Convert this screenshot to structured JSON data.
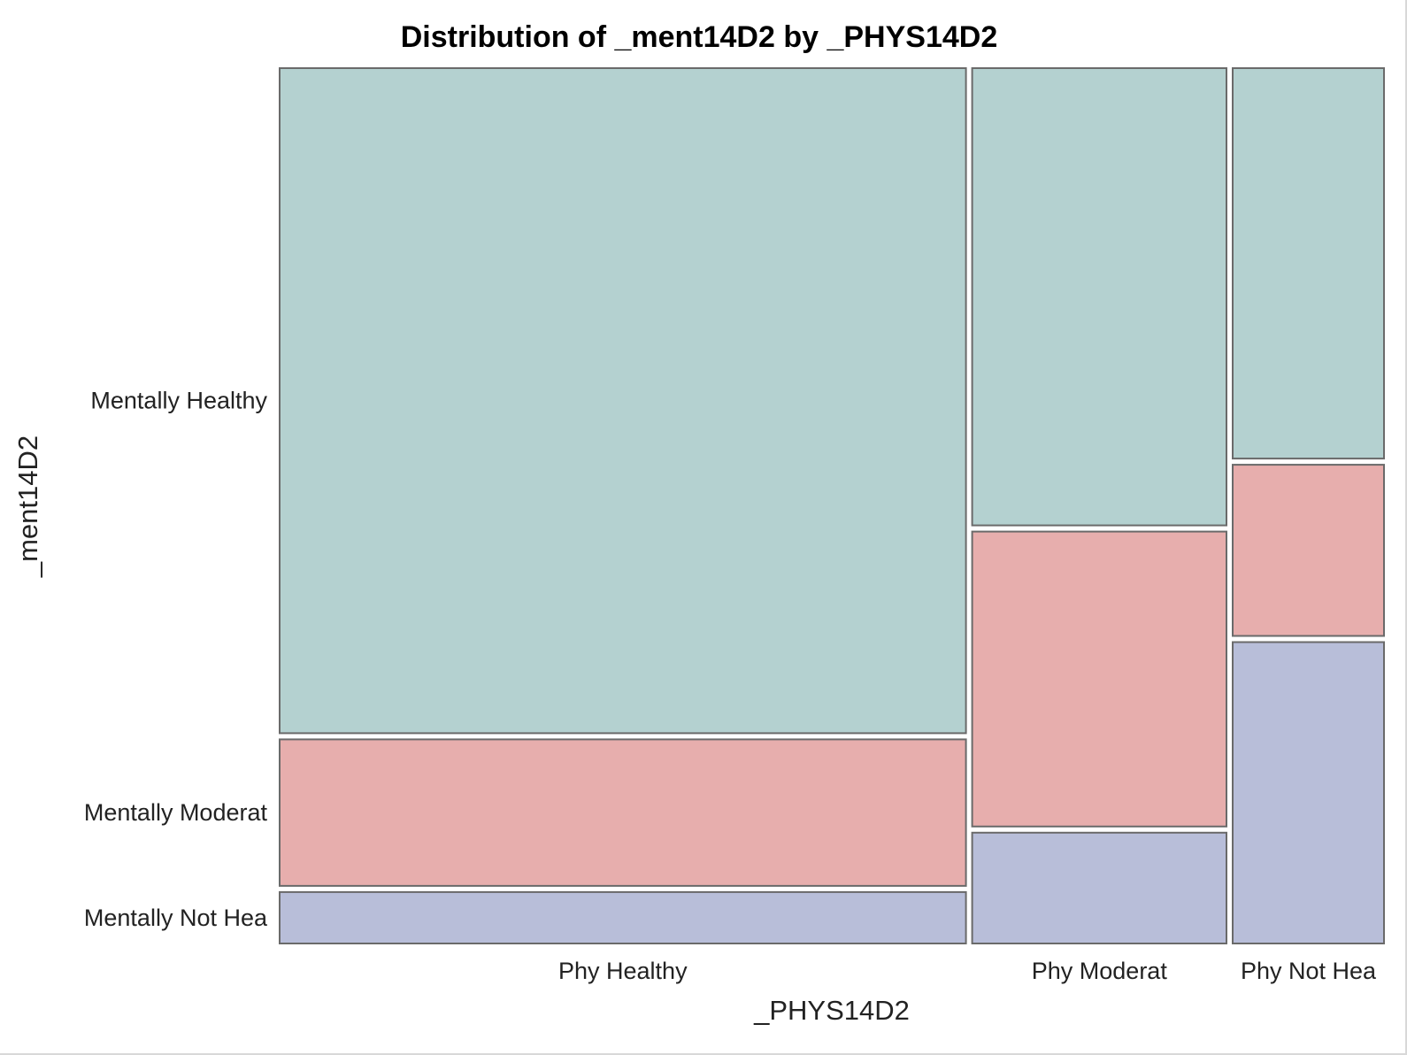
{
  "chart_data": {
    "type": "mosaic",
    "title": "Distribution of _ment14D2 by _PHYS14D2",
    "xlabel": "_PHYS14D2",
    "ylabel": "_ment14D2",
    "x_categories": [
      "Phy Healthy",
      "Phy Moderat",
      "Phy Not Hea"
    ],
    "y_categories": [
      "Mentally Healthy",
      "Mentally Moderat",
      "Mentally Not Hea"
    ],
    "column_shares": [
      0.626,
      0.232,
      0.138
    ],
    "cell_shares": [
      [
        0.763,
        0.168,
        0.059
      ],
      [
        0.524,
        0.338,
        0.127
      ],
      [
        0.447,
        0.196,
        0.345
      ]
    ],
    "colors": {
      "Mentally Healthy": "#b4d1d0",
      "Mentally Moderat": "#e7aead",
      "Mentally Not Hea": "#b8bed9"
    }
  }
}
